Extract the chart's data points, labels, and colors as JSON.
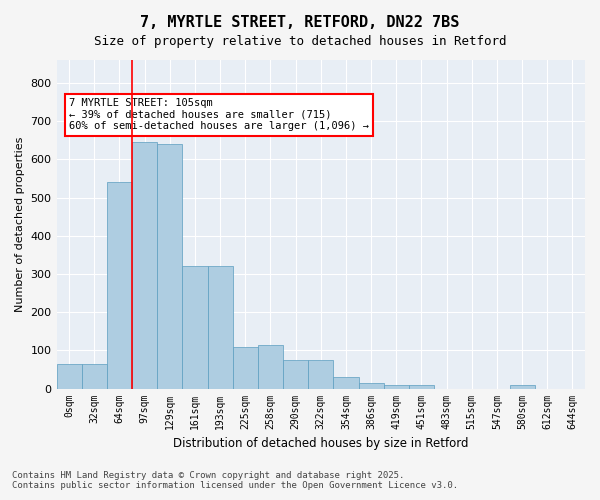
{
  "title_line1": "7, MYRTLE STREET, RETFORD, DN22 7BS",
  "title_line2": "Size of property relative to detached houses in Retford",
  "xlabel": "Distribution of detached houses by size in Retford",
  "ylabel": "Number of detached properties",
  "bar_color": "#aecde1",
  "bar_edge_color": "#5b9dc0",
  "background_color": "#e8eef5",
  "annotation_text": "7 MYRTLE STREET: 105sqm\n← 39% of detached houses are smaller (715)\n60% of semi-detached houses are larger (1,096) →",
  "vline_x": 3.0,
  "vline_color": "red",
  "categories": [
    "0sqm",
    "32sqm",
    "64sqm",
    "97sqm",
    "129sqm",
    "161sqm",
    "193sqm",
    "225sqm",
    "258sqm",
    "290sqm",
    "322sqm",
    "354sqm",
    "386sqm",
    "419sqm",
    "451sqm",
    "483sqm",
    "515sqm",
    "547sqm",
    "580sqm",
    "612sqm",
    "644sqm"
  ],
  "values": [
    65,
    65,
    540,
    645,
    640,
    320,
    320,
    110,
    115,
    75,
    75,
    30,
    15,
    10,
    10,
    0,
    0,
    0,
    10,
    0,
    0
  ],
  "ylim": [
    0,
    860
  ],
  "yticks": [
    0,
    100,
    200,
    300,
    400,
    500,
    600,
    700,
    800
  ],
  "footnote": "Contains HM Land Registry data © Crown copyright and database right 2025.\nContains public sector information licensed under the Open Government Licence v3.0.",
  "fig_bg": "#f5f5f5"
}
